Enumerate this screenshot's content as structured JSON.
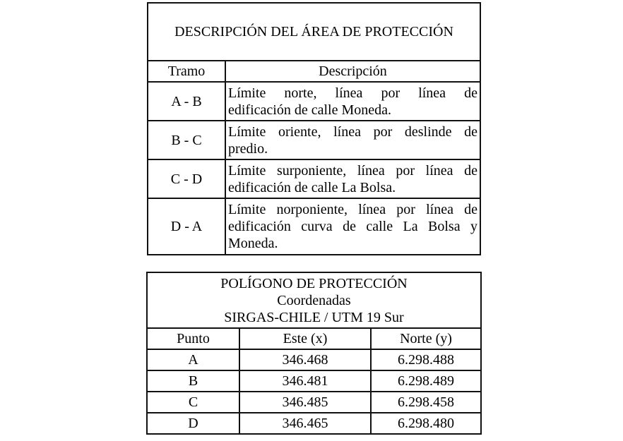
{
  "description_table": {
    "title": "DESCRIPCIÓN DEL ÁREA DE PROTECCIÓN",
    "headers": [
      "Tramo",
      "Descripción"
    ],
    "rows": [
      {
        "tramo": "A - B",
        "lines": [
          "Límite norte, línea por línea de",
          "edificación de calle Moneda."
        ]
      },
      {
        "tramo": "B - C",
        "lines": [
          "Límite oriente, línea por deslinde de",
          "predio."
        ]
      },
      {
        "tramo": "C - D",
        "lines": [
          "Límite surponiente, línea por línea de",
          "edificación de calle La Bolsa."
        ]
      },
      {
        "tramo": "D - A",
        "lines": [
          "Límite norponiente, línea por línea de",
          "edificación curva de calle La Bolsa y",
          "Moneda."
        ]
      }
    ]
  },
  "polygon_table": {
    "title": "POLÍGONO DE PROTECCIÓN",
    "subtitle": "Coordenadas",
    "system": "SIRGAS-CHILE / UTM 19 Sur",
    "headers": [
      "Punto",
      "Este (x)",
      "Norte (y)"
    ],
    "rows": [
      [
        "A",
        "346.468",
        "6.298.488"
      ],
      [
        "B",
        "346.481",
        "6.298.489"
      ],
      [
        "C",
        "346.485",
        "6.298.458"
      ],
      [
        "D",
        "346.465",
        "6.298.480"
      ]
    ]
  }
}
